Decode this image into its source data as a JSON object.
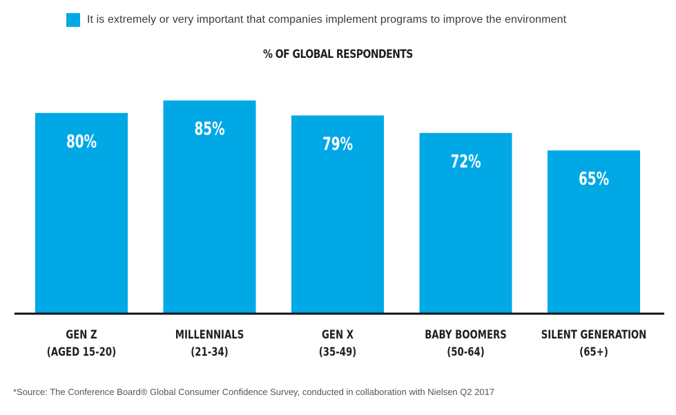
{
  "legend": {
    "label": "It is extremely or very important that companies implement programs to improve the environment",
    "color": "#00a8e6"
  },
  "subtitle": "% OF GLOBAL RESPONDENTS",
  "source": "*Source: The Conference Board® Global Consumer Confidence Survey, conducted in collaboration with Nielsen Q2 2017",
  "chart_data": {
    "type": "bar",
    "title": "% OF GLOBAL RESPONDENTS",
    "xlabel": "",
    "ylabel": "",
    "ylim": [
      0,
      100
    ],
    "grid": false,
    "legend_position": "top",
    "categories": [
      [
        "GEN Z",
        "(AGED 15-20)"
      ],
      [
        "MILLENNIALS",
        "(21-34)"
      ],
      [
        "GEN X",
        "(35-49)"
      ],
      [
        "BABY BOOMERS",
        "(50-64)"
      ],
      [
        "SILENT GENERATION",
        "(65+)"
      ]
    ],
    "series": [
      {
        "name": "It is extremely or very important that companies implement programs to improve the environment",
        "values": [
          80,
          85,
          79,
          72,
          65
        ],
        "labels": [
          "80%",
          "85%",
          "79%",
          "72%",
          "65%"
        ],
        "color": "#00a8e6"
      }
    ]
  }
}
